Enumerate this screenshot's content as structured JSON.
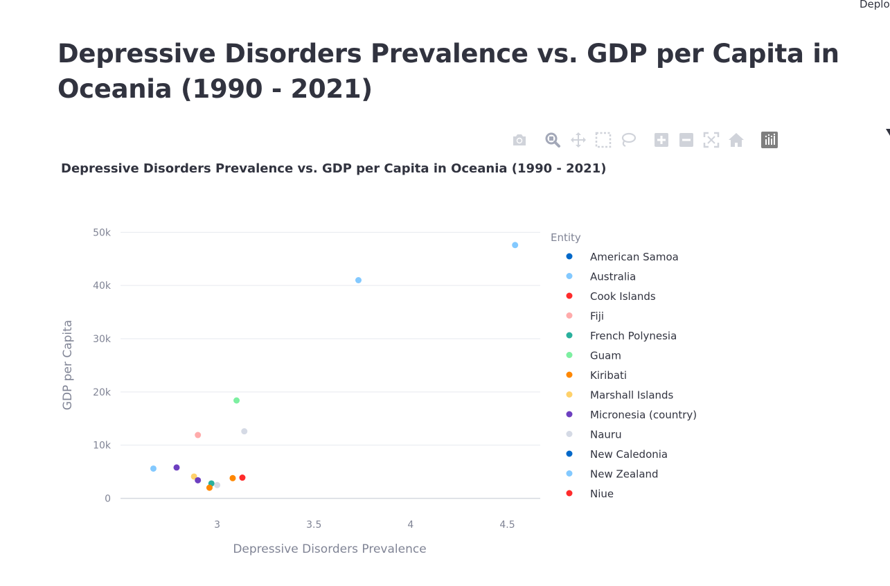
{
  "header": {
    "deploy_label": "Deploy"
  },
  "page_title": "Depressive Disorders Prevalence vs. GDP per Capita in Oceania (1990 - 2021)",
  "toolbar": {
    "buttons": [
      {
        "name": "camera-icon",
        "title": "Download plot as a png"
      },
      {
        "name": "zoom-icon",
        "title": "Zoom"
      },
      {
        "name": "pan-icon",
        "title": "Pan"
      },
      {
        "name": "box-select-icon",
        "title": "Box Select"
      },
      {
        "name": "lasso-select-icon",
        "title": "Lasso Select"
      },
      {
        "name": "zoom-in-icon",
        "title": "Zoom in"
      },
      {
        "name": "zoom-out-icon",
        "title": "Zoom out"
      },
      {
        "name": "autoscale-icon",
        "title": "Autoscale"
      },
      {
        "name": "reset-axes-icon",
        "title": "Reset axes"
      },
      {
        "name": "plotly-logo-icon",
        "title": "Produced with Plotly"
      }
    ]
  },
  "chart_data": {
    "type": "scatter",
    "title": "Depressive Disorders Prevalence vs. GDP per Capita in Oceania (1990 - 2021)",
    "xlabel": "Depressive Disorders Prevalence",
    "ylabel": "GDP per Capita",
    "xlim": [
      2.5,
      4.67
    ],
    "ylim": [
      -1500,
      52000
    ],
    "x_ticks": [
      3,
      3.5,
      4,
      4.5
    ],
    "x_tick_labels": [
      "3",
      "3.5",
      "4",
      "4.5"
    ],
    "y_ticks": [
      0,
      10000,
      20000,
      30000,
      40000,
      50000
    ],
    "y_tick_labels": [
      "0",
      "10k",
      "20k",
      "30k",
      "40k",
      "50k"
    ],
    "grid": "horizontal",
    "legend_title": "Entity",
    "legend_position": "right",
    "series": [
      {
        "name": "American Samoa",
        "color": "#0068c9",
        "points": []
      },
      {
        "name": "Australia",
        "color": "#83c9ff",
        "points": [
          [
            3.73,
            41000
          ],
          [
            4.54,
            47600
          ]
        ]
      },
      {
        "name": "Cook Islands",
        "color": "#ff2b2b",
        "points": [
          [
            3.13,
            3900
          ]
        ]
      },
      {
        "name": "Fiji",
        "color": "#ffabab",
        "points": [
          [
            2.9,
            11900
          ]
        ]
      },
      {
        "name": "French Polynesia",
        "color": "#29b09d",
        "points": [
          [
            2.97,
            2800
          ]
        ]
      },
      {
        "name": "Guam",
        "color": "#7defa1",
        "points": [
          [
            3.1,
            18400
          ]
        ]
      },
      {
        "name": "Kiribati",
        "color": "#ff8700",
        "points": [
          [
            2.96,
            2000
          ],
          [
            3.08,
            3800
          ]
        ]
      },
      {
        "name": "Marshall Islands",
        "color": "#ffd16a",
        "points": [
          [
            2.88,
            4100
          ]
        ]
      },
      {
        "name": "Micronesia (country)",
        "color": "#6d3fc0",
        "points": [
          [
            2.79,
            5800
          ],
          [
            2.9,
            3400
          ]
        ]
      },
      {
        "name": "Nauru",
        "color": "#d5dae5",
        "points": [
          [
            3.0,
            2500
          ],
          [
            3.14,
            12600
          ]
        ]
      },
      {
        "name": "New Caledonia",
        "color": "#0068c9",
        "points": []
      },
      {
        "name": "New Zealand",
        "color": "#83c9ff",
        "points": [
          [
            2.67,
            5600
          ]
        ]
      },
      {
        "name": "Niue",
        "color": "#ff2b2b",
        "points": []
      }
    ]
  }
}
